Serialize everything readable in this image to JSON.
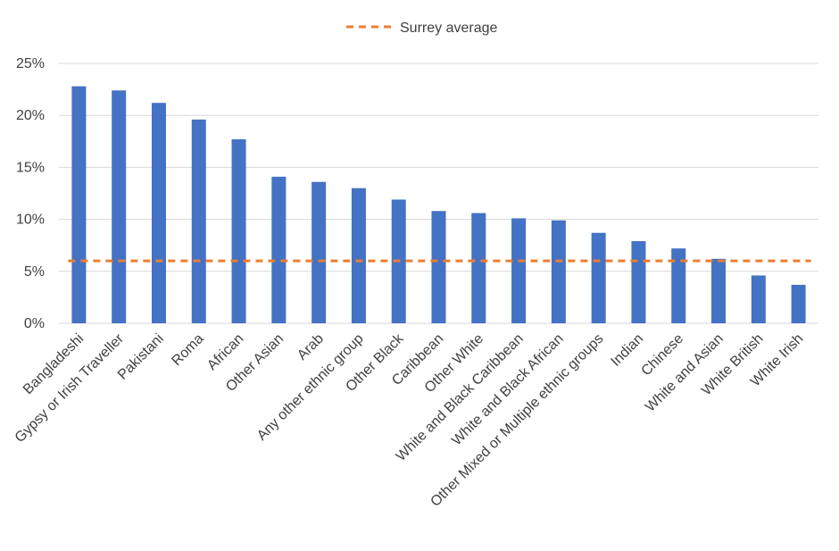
{
  "chart_data": {
    "type": "bar",
    "title": "",
    "xlabel": "",
    "ylabel": "",
    "categories": [
      "Bangladeshi",
      "Gypsy or Irish Traveller",
      "Pakistani",
      "Roma",
      "African",
      "Other Asian",
      "Arab",
      "Any other ethnic group",
      "Other Black",
      "Caribbean",
      "Other White",
      "White and Black Caribbean",
      "White and Black African",
      "Other Mixed or Multiple ethnic groups",
      "Indian",
      "Chinese",
      "White and Asian",
      "White British",
      "White Irish"
    ],
    "values": [
      22.8,
      22.4,
      21.2,
      19.6,
      17.7,
      14.1,
      13.6,
      13.0,
      11.9,
      10.8,
      10.6,
      10.1,
      9.9,
      8.7,
      7.9,
      7.2,
      6.2,
      4.6,
      3.7
    ],
    "ylim": [
      0,
      25
    ],
    "yticks": [
      "0%",
      "5%",
      "10%",
      "15%",
      "20%",
      "25%"
    ],
    "reference_line": {
      "name": "Surrey average",
      "value": 6.0
    },
    "legend": "top-center",
    "grid": true,
    "colors": {
      "bar": "#4472C4",
      "average_line": "#ED7D31",
      "grid": "#D9D9D9",
      "text": "#404040"
    }
  }
}
